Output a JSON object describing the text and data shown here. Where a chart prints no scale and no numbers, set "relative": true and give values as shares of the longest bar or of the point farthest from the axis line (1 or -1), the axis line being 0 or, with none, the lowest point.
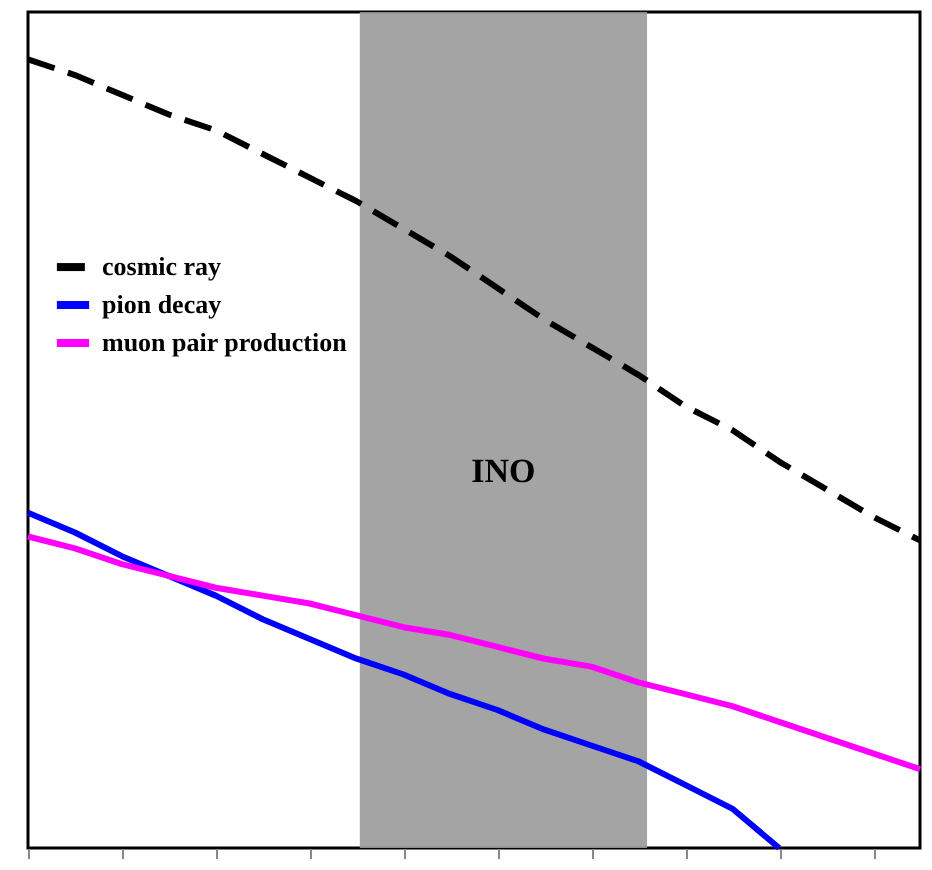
{
  "chart_data": {
    "type": "line",
    "relative": true,
    "grid": false,
    "legend": "top left",
    "tick_labels": false,
    "marker": "none",
    "categories": [
      null,
      null,
      null,
      null,
      null,
      null,
      null,
      null,
      null,
      null,
      null,
      null,
      null,
      null,
      null,
      null,
      null,
      null,
      null,
      null
    ],
    "series": [
      {
        "name": "cosmic ray",
        "color": "#000000",
        "line_style": "dashed",
        "values": [
          1.0,
          0.98,
          0.955,
          0.93,
          0.91,
          0.88,
          0.85,
          0.82,
          0.785,
          0.75,
          0.71,
          0.67,
          0.635,
          0.6,
          0.56,
          0.53,
          0.49,
          0.455,
          0.42,
          0.39
        ]
      },
      {
        "name": "pion decay",
        "color": "#0000ff",
        "line_style": "solid",
        "values": [
          0.425,
          0.4,
          0.37,
          0.345,
          0.32,
          0.29,
          0.265,
          0.24,
          0.22,
          0.195,
          0.175,
          0.15,
          0.13,
          0.11,
          0.08,
          0.05,
          0.0,
          null,
          null,
          null
        ]
      },
      {
        "name": "muon pair production",
        "color": "#ff00ff",
        "line_style": "solid",
        "values": [
          0.395,
          0.38,
          0.36,
          0.345,
          0.33,
          0.32,
          0.31,
          0.295,
          0.28,
          0.27,
          0.255,
          0.24,
          0.23,
          0.21,
          0.195,
          0.18,
          0.16,
          0.14,
          0.12,
          0.1
        ]
      }
    ],
    "annotations": [
      "INO"
    ]
  }
}
